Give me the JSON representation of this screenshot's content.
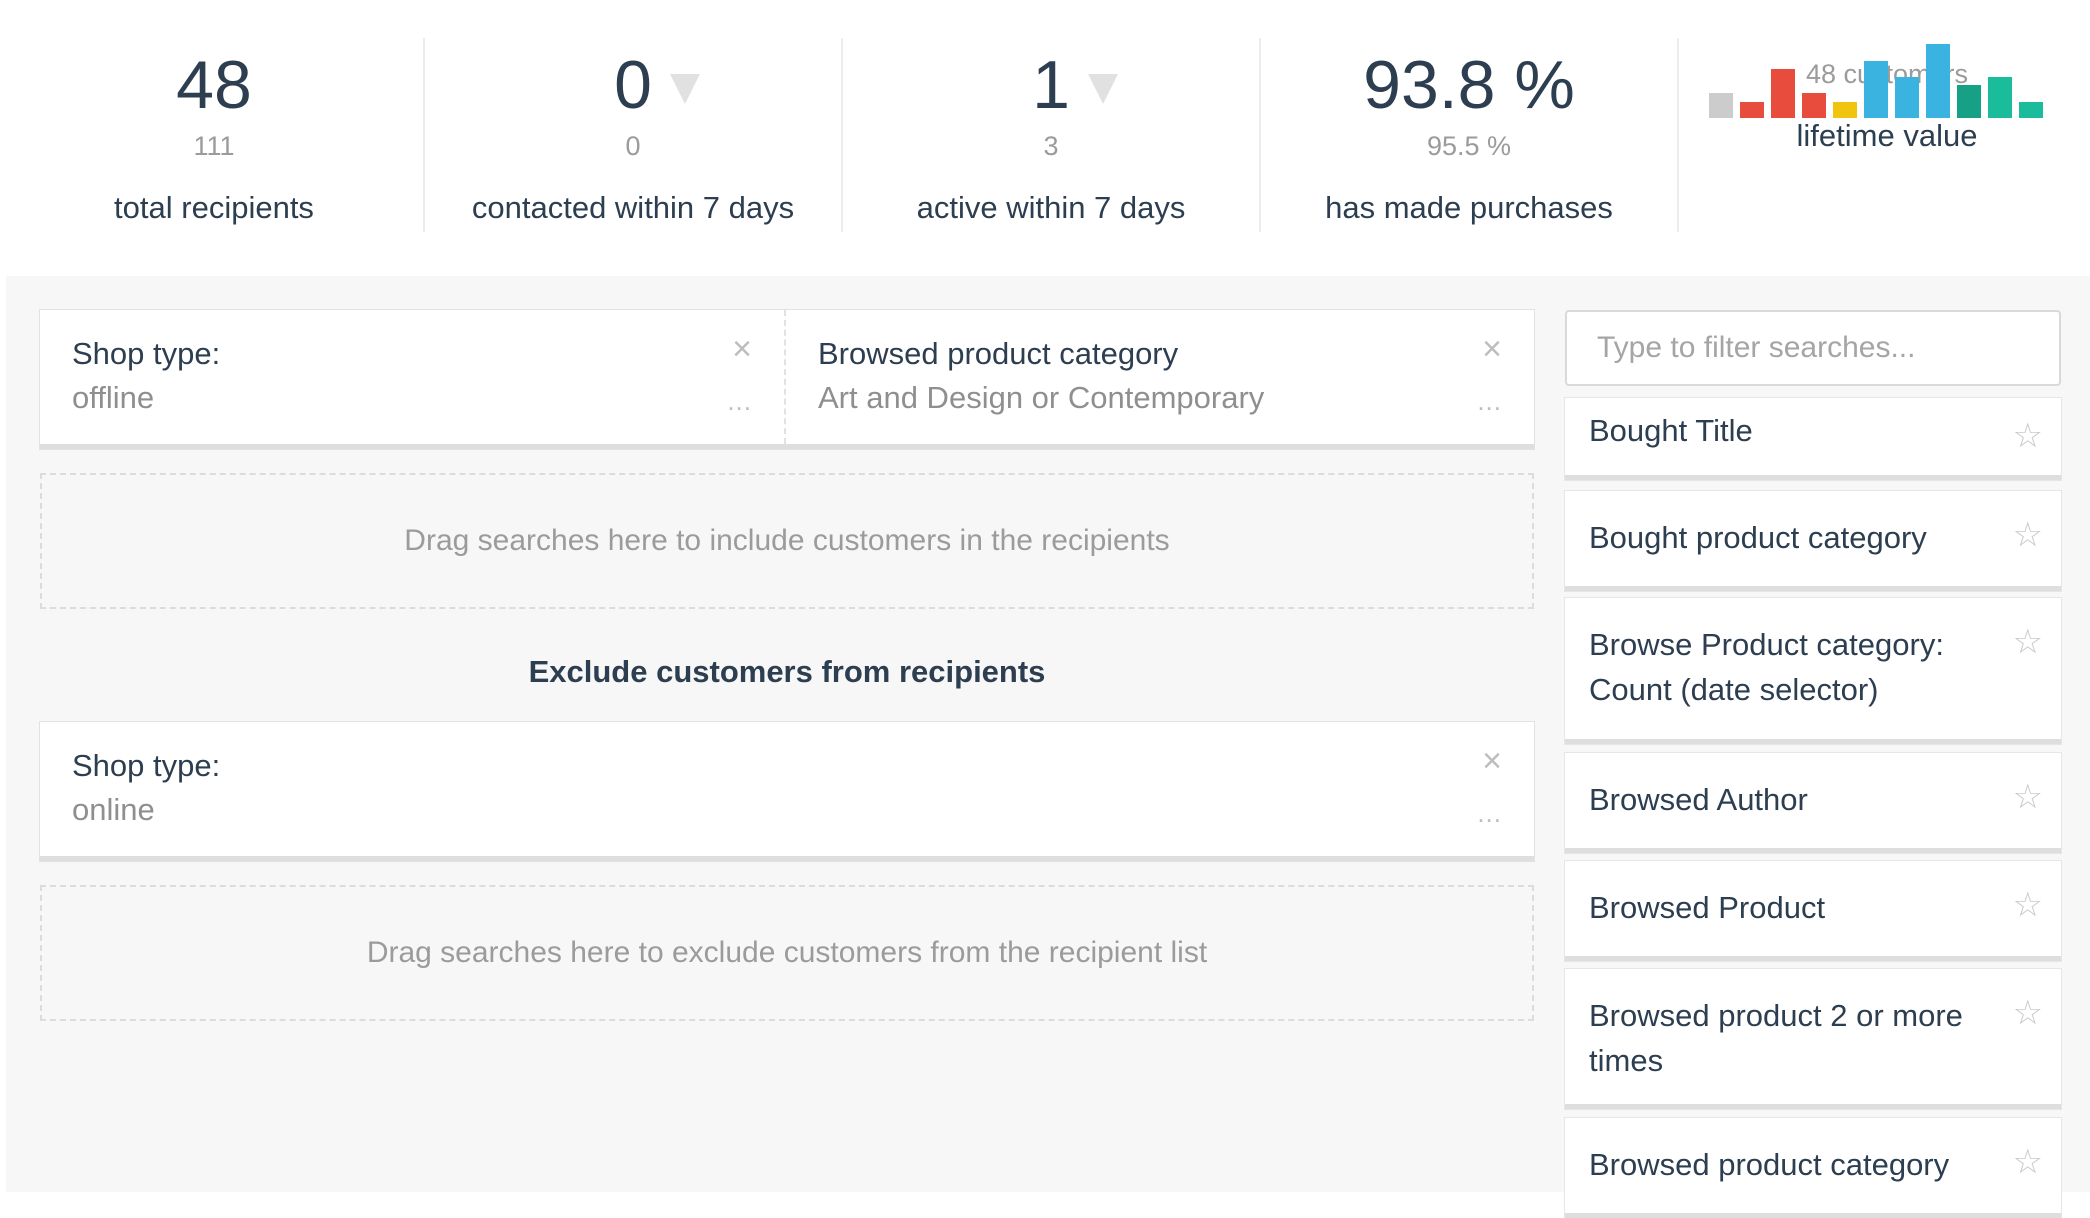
{
  "stats": [
    {
      "value": "48",
      "sub": "111",
      "label": "total recipients",
      "trend": false
    },
    {
      "value": "0",
      "sub": "0",
      "label": "contacted within 7 days",
      "trend": true
    },
    {
      "value": "1",
      "sub": "3",
      "label": "active within 7 days",
      "trend": true
    },
    {
      "value": "93.8 %",
      "sub": "95.5 %",
      "label": "has made purchases",
      "trend": false
    },
    {
      "value": "",
      "sub": "48 customers",
      "label": "lifetime value",
      "trend": false
    }
  ],
  "lifetime_value_chart": {
    "type": "bar",
    "values": [
      0.3,
      0.2,
      0.6,
      0.3,
      0.2,
      0.7,
      0.5,
      0.9,
      0.4,
      0.5,
      0.2
    ],
    "colors": [
      "#cccccc",
      "#e74c3c",
      "#e74c3c",
      "#e74c3c",
      "#f1c40f",
      "#3bb3e0",
      "#3bb3e0",
      "#3bb3e0",
      "#16a085",
      "#1abc9c",
      "#1abc9c"
    ]
  },
  "include": {
    "criteria": [
      {
        "title": "Shop type:",
        "value": "offline",
        "close": "×",
        "more": "..."
      },
      {
        "title": "Browsed product category",
        "value": "Art and Design or Contemporary",
        "close": "×",
        "more": "..."
      }
    ],
    "dropzone": "Drag searches here to include customers in the recipients"
  },
  "exclude": {
    "title": "Exclude customers from recipients",
    "criteria": [
      {
        "title": "Shop type:",
        "value": "online",
        "close": "×",
        "more": "..."
      }
    ],
    "dropzone": "Drag searches here to exclude customers from the recipient list"
  },
  "sidebar": {
    "search_placeholder": "Type to filter searches...",
    "star": "☆",
    "saved_searches": [
      {
        "label": "Bought Title"
      },
      {
        "label": "Bought product category"
      },
      {
        "label": "Browse Product category: Count (date selector)"
      },
      {
        "label": "Browsed Author"
      },
      {
        "label": "Browsed Product"
      },
      {
        "label": "Browsed product 2 or more times"
      },
      {
        "label": "Browsed product category"
      }
    ]
  },
  "colors": {
    "text": "#2c3e50",
    "muted": "#9b9b9b",
    "panel_bg": "#f7f7f7"
  }
}
